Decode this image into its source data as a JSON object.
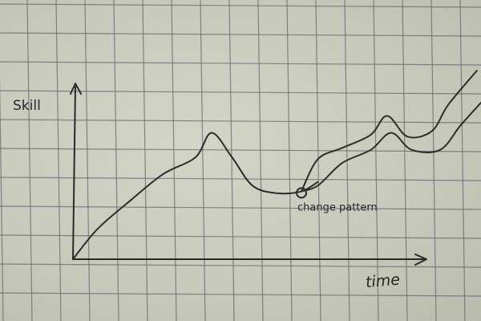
{
  "chart_data": {
    "type": "line",
    "title": "",
    "xlabel": "time",
    "ylabel": "Skill",
    "grid": true,
    "xlim": [
      0,
      10
    ],
    "ylim": [
      0,
      10
    ],
    "series": [
      {
        "x": [
          0,
          0.6,
          1.4,
          2.2,
          3.0,
          3.4,
          3.9,
          4.4,
          5.0,
          5.6,
          6.0
        ],
        "y": [
          0,
          1.6,
          3.1,
          4.5,
          5.4,
          6.7,
          5.4,
          3.9,
          3.5,
          3.6,
          4.1
        ]
      },
      {
        "x": [
          5.6,
          6.0,
          6.6,
          7.3,
          7.7,
          8.2,
          8.8,
          9.2,
          9.9
        ],
        "y": [
          3.6,
          5.3,
          5.9,
          6.6,
          7.6,
          6.5,
          6.8,
          8.2,
          10.0
        ]
      },
      {
        "x": [
          5.6,
          6.0,
          6.6,
          7.3,
          7.8,
          8.3,
          9.0,
          9.5,
          10.0
        ],
        "y": [
          3.6,
          3.9,
          5.1,
          5.8,
          6.7,
          5.8,
          5.8,
          7.1,
          8.3
        ]
      }
    ],
    "annotations": [
      {
        "text": "change pattern",
        "x": 5.6,
        "y": 3.6
      }
    ]
  }
}
